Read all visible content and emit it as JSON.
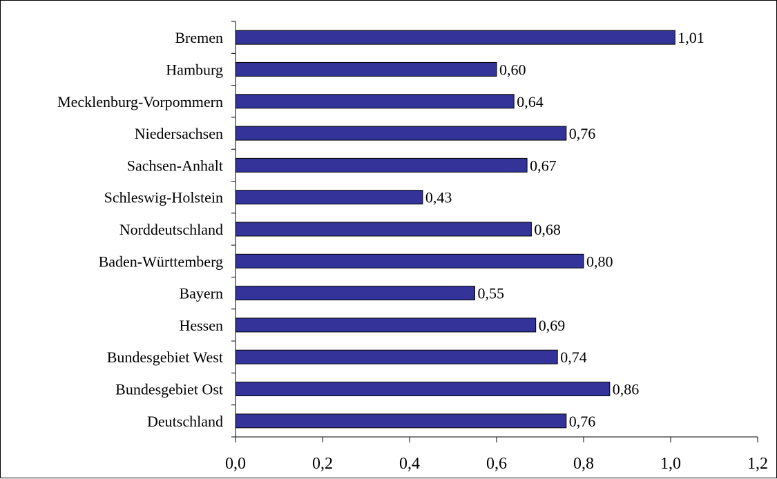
{
  "chart_data": {
    "type": "bar",
    "orientation": "horizontal",
    "categories": [
      "Bremen",
      "Hamburg",
      "Mecklenburg-Vorpommern",
      "Niedersachsen",
      "Sachsen-Anhalt",
      "Schleswig-Holstein",
      "Norddeutschland",
      "Baden-Württemberg",
      "Bayern",
      "Hessen",
      "Bundesgebiet West",
      "Bundesgebiet Ost",
      "Deutschland"
    ],
    "values": [
      1.01,
      0.6,
      0.64,
      0.76,
      0.67,
      0.43,
      0.68,
      0.8,
      0.55,
      0.69,
      0.74,
      0.86,
      0.76
    ],
    "data_labels": [
      "1,01",
      "0,60",
      "0,64",
      "0,76",
      "0,67",
      "0,43",
      "0,68",
      "0,80",
      "0,55",
      "0,69",
      "0,74",
      "0,86",
      "0,76"
    ],
    "xlim": [
      0,
      1.2
    ],
    "xticks": [
      0,
      0.2,
      0.4,
      0.6,
      0.8,
      1.0,
      1.2
    ],
    "xtick_labels": [
      "0,0",
      "0,2",
      "0,4",
      "0,6",
      "0,8",
      "1,0",
      "1,2"
    ],
    "grid": false,
    "legend": "none",
    "bar_color": "#333399",
    "bar_edge_color": "#000000"
  }
}
